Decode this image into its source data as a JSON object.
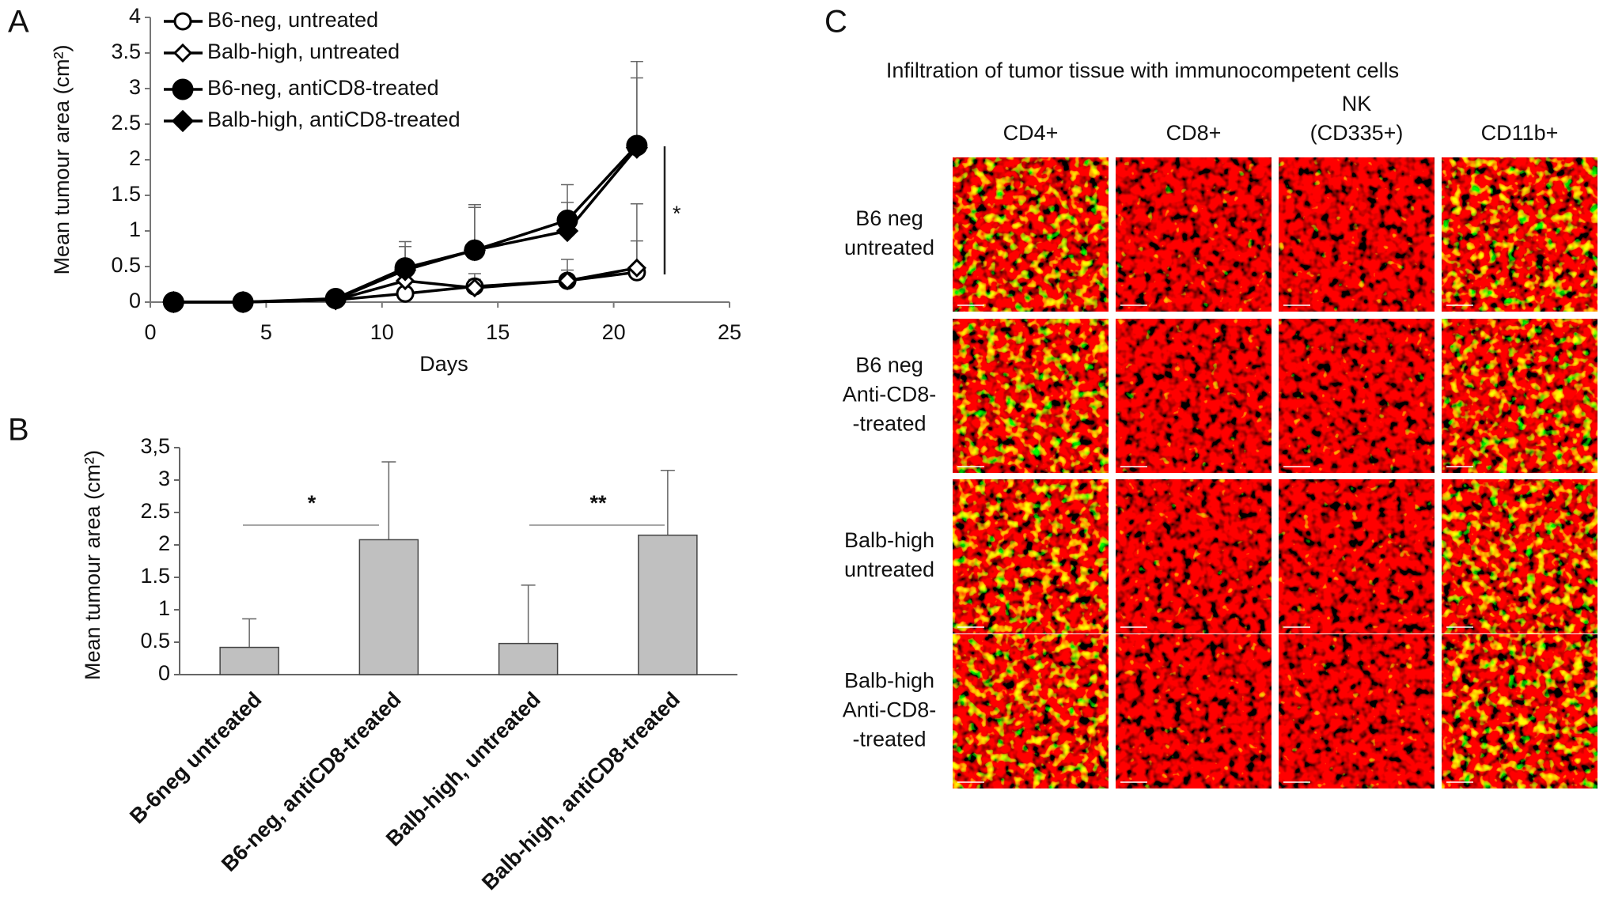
{
  "chart_data": [
    {
      "type": "line",
      "panel": "A",
      "x_label": "Days",
      "y_label": "Mean tumour area (cm²)",
      "x": [
        1,
        4,
        8,
        11,
        14,
        18,
        21
      ],
      "series": [
        {
          "name": "B6-neg, untreated",
          "color": "#000000",
          "marker": "circle",
          "filled": false,
          "values": [
            0,
            0,
            0.03,
            0.12,
            0.22,
            0.3,
            0.42
          ],
          "errors": [
            0,
            0,
            0.02,
            0.2,
            0.1,
            0.15,
            0.44
          ]
        },
        {
          "name": "Balb-high, untreated",
          "color": "#000000",
          "marker": "diamond",
          "filled": false,
          "values": [
            0,
            0,
            0.03,
            0.3,
            0.2,
            0.3,
            0.48
          ],
          "errors": [
            0,
            0,
            0.02,
            0.25,
            0.2,
            0.3,
            0.9
          ]
        },
        {
          "name": "B6-neg, antiCD8-treated",
          "color": "#000000",
          "marker": "circle",
          "filled": true,
          "values": [
            0,
            0,
            0.05,
            0.48,
            0.73,
            1.15,
            2.2
          ],
          "errors": [
            0,
            0,
            0.03,
            0.37,
            0.64,
            0.5,
            1.18
          ]
        },
        {
          "name": "Balb-high, antiCD8-treated",
          "color": "#000000",
          "marker": "diamond",
          "filled": true,
          "values": [
            0,
            0,
            0.04,
            0.45,
            0.73,
            1.0,
            2.17
          ],
          "errors": [
            0,
            0,
            0.03,
            0.33,
            0.6,
            0.4,
            0.98
          ]
        }
      ],
      "xlim": [
        0,
        25
      ],
      "xticks": [
        0,
        5,
        10,
        15,
        20,
        25
      ],
      "ylim": [
        0,
        4
      ],
      "yticks": [
        0,
        0.5,
        1,
        1.5,
        2,
        2.5,
        3,
        3.5,
        4
      ],
      "annotations": [
        "*"
      ]
    },
    {
      "type": "bar",
      "panel": "B",
      "y_label": "Mean tumour area (cm²)",
      "categories": [
        "B-6neg untreated",
        "B6-neg, antiCD8-treated",
        "Balb-high, untreated",
        "Balb-high, antiCD8-treated"
      ],
      "values": [
        0.42,
        2.08,
        0.48,
        2.15
      ],
      "errors": [
        0.44,
        1.2,
        0.9,
        1.0
      ],
      "color": "#c0c0c0",
      "ylim": [
        0,
        3.5
      ],
      "yticks": [
        0,
        0.5,
        1,
        1.5,
        2,
        2.5,
        3,
        {
          "value": 3.5,
          "label": "3,5"
        }
      ],
      "annotations": [
        "*",
        "**"
      ]
    }
  ],
  "panel_c": {
    "panel": "C",
    "title": "Infiltration of tumor tissue with immunocompetent cells",
    "columns": [
      [
        "CD4+"
      ],
      [
        "CD8+"
      ],
      [
        "NK",
        "(CD335+)"
      ],
      [
        "CD11b+"
      ]
    ],
    "rows": [
      [
        "B6 neg",
        "untreated"
      ],
      [
        "B6 neg",
        "Anti-CD8-",
        "-treated"
      ],
      [
        "Balb-high",
        "untreated"
      ],
      [
        "Balb-high",
        "Anti-CD8-",
        "-treated"
      ]
    ]
  }
}
